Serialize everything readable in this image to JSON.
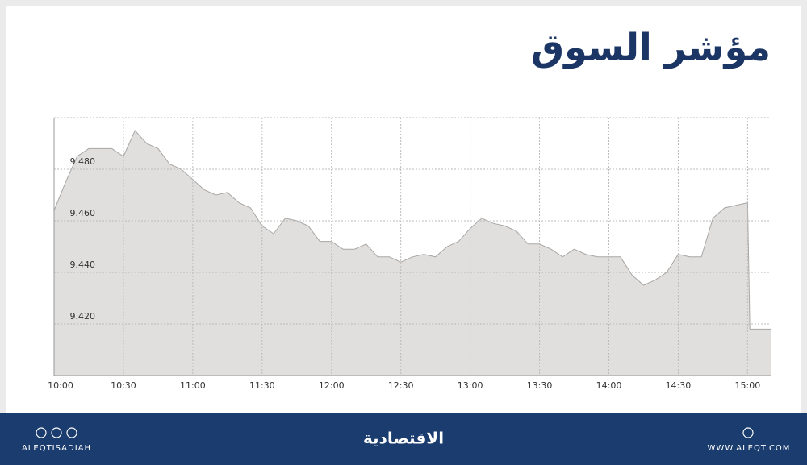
{
  "chart_data": {
    "type": "area",
    "title": "مؤشر السوق",
    "x": [
      "10:00",
      "10:05",
      "10:10",
      "10:15",
      "10:20",
      "10:25",
      "10:30",
      "10:35",
      "10:40",
      "10:45",
      "10:50",
      "10:55",
      "11:00",
      "11:05",
      "11:10",
      "11:15",
      "11:20",
      "11:25",
      "11:30",
      "11:35",
      "11:40",
      "11:45",
      "11:50",
      "11:55",
      "12:00",
      "12:05",
      "12:10",
      "12:15",
      "12:20",
      "12:25",
      "12:30",
      "12:35",
      "12:40",
      "12:45",
      "12:50",
      "12:55",
      "13:00",
      "13:05",
      "13:10",
      "13:15",
      "13:20",
      "13:25",
      "13:30",
      "13:35",
      "13:40",
      "13:45",
      "13:50",
      "13:55",
      "14:00",
      "14:05",
      "14:10",
      "14:15",
      "14:20",
      "14:25",
      "14:30",
      "14:35",
      "14:40",
      "14:45",
      "14:50",
      "14:55",
      "15:00",
      "15:01",
      "15:10"
    ],
    "values": [
      9.464,
      9.475,
      9.485,
      9.488,
      9.488,
      9.488,
      9.485,
      9.495,
      9.49,
      9.488,
      9.482,
      9.48,
      9.476,
      9.472,
      9.47,
      9.471,
      9.467,
      9.465,
      9.458,
      9.455,
      9.461,
      9.46,
      9.458,
      9.452,
      9.452,
      9.449,
      9.449,
      9.451,
      9.446,
      9.446,
      9.444,
      9.446,
      9.447,
      9.446,
      9.45,
      9.452,
      9.457,
      9.461,
      9.459,
      9.458,
      9.456,
      9.451,
      9.451,
      9.449,
      9.446,
      9.449,
      9.447,
      9.446,
      9.446,
      9.446,
      9.439,
      9.435,
      9.437,
      9.44,
      9.447,
      9.446,
      9.446,
      9.461,
      9.465,
      9.466,
      9.467,
      9.418,
      9.418
    ],
    "color": "#e1dfdd",
    "xlim": [
      "10:00",
      "15:10"
    ],
    "xticks": [
      "10:00",
      "10:30",
      "11:00",
      "11:30",
      "12:00",
      "12:30",
      "13:00",
      "13:30",
      "14:00",
      "14:30",
      "15:00"
    ],
    "ylim": [
      9.4,
      9.5
    ],
    "yticks": [
      {
        "value": 9.42,
        "label": "9.420"
      },
      {
        "value": 9.44,
        "label": "9.440"
      },
      {
        "value": 9.46,
        "label": "9.460"
      },
      {
        "value": 9.48,
        "label": "9.480"
      }
    ],
    "grid": true
  },
  "footer": {
    "left": "ALEQTISADIAH",
    "center": "الاقتصادية",
    "right": "WWW.ALEQT.COM"
  }
}
